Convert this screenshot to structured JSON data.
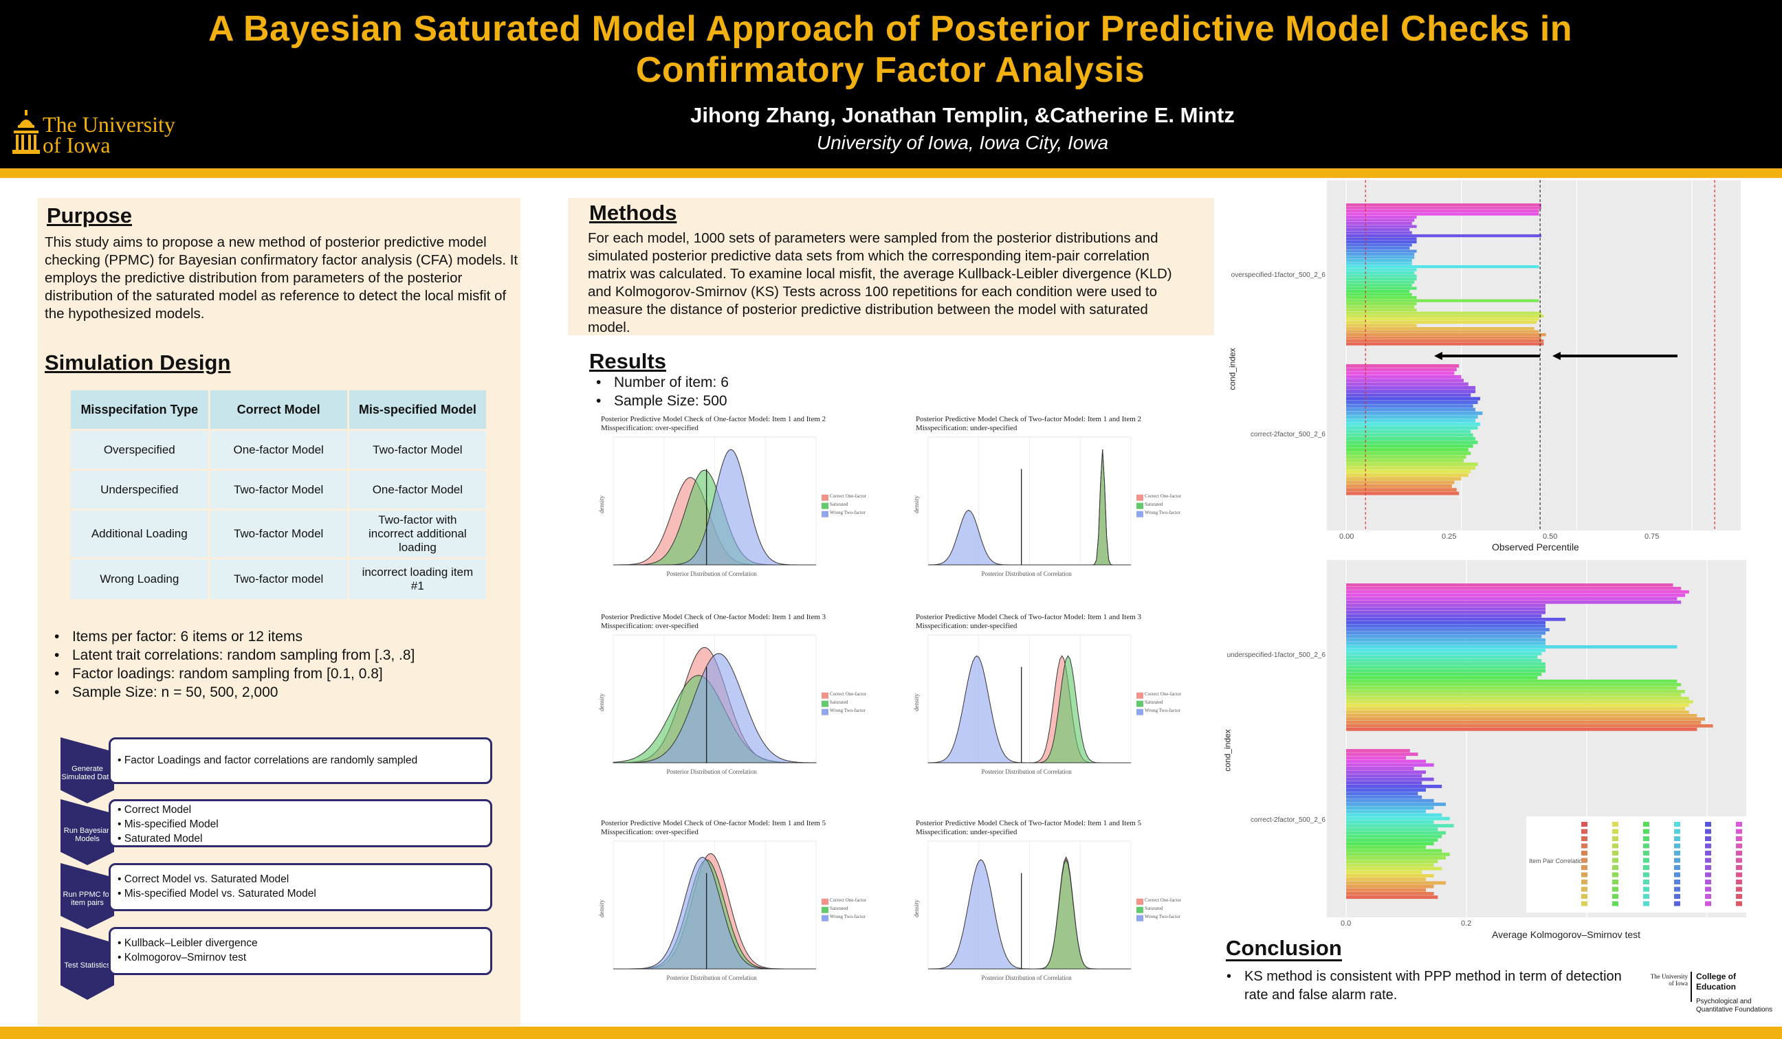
{
  "header": {
    "title_line1": "A Bayesian Saturated Model Approach of Posterior Predictive Model Checks in",
    "title_line2": "Confirmatory Factor Analysis",
    "authors": "Jihong Zhang, Jonathan Templin, &Catherine E. Mintz",
    "affiliation": "University of Iowa, Iowa City, Iowa",
    "logo_line1": "The University",
    "logo_line2": "of Iowa"
  },
  "purpose": {
    "title": "Purpose",
    "text": "This study aims to propose a new method of posterior predictive model checking (PPMC) for Bayesian confirmatory factor analysis (CFA) models. It employs the predictive distribution from parameters of the posterior distribution of the saturated model as reference to detect the local misfit of the hypothesized models."
  },
  "simulation": {
    "title": "Simulation Design",
    "headers": [
      "Misspecifation Type",
      "Correct Model",
      "Mis-specified Model"
    ],
    "rows": [
      [
        "Overspecified",
        "One-factor Model",
        "Two-factor Model"
      ],
      [
        "Underspecified",
        "Two-factor Model",
        "One-factor Model"
      ],
      [
        "Additional Loading",
        "Two-factor Model",
        "Two-factor with incorrect additional loading"
      ],
      [
        "Wrong Loading",
        "Two-factor model",
        "incorrect loading item #1"
      ]
    ],
    "bullets": [
      "Items per factor: 6 items or 12 items",
      "Latent trait correlations:  random sampling from [.3, .8]",
      "Factor loadings: random sampling from [0.1, 0.8]",
      "Sample Size: n = 50, 500, 2,000"
    ]
  },
  "steps": [
    {
      "label": "Generate Simulated Data",
      "items": [
        "Factor Loadings and factor correlations are randomly sampled"
      ]
    },
    {
      "label": "Run Bayesian Models",
      "items": [
        "Correct Model",
        "Mis-specified Model",
        "Saturated Model"
      ]
    },
    {
      "label": "Run PPMC for item pairs",
      "items": [
        "Correct Model vs. Saturated Model",
        "Mis-specified Model vs. Saturated Model"
      ]
    },
    {
      "label": "Test Statistics",
      "items": [
        "Kullback–Leibler divergence",
        "Kolmogorov–Smirnov test"
      ]
    }
  ],
  "methods": {
    "title": "Methods",
    "text": "For each model, 1000 sets of parameters were sampled from the posterior distributions and simulated posterior predictive data sets from which the corresponding item-pair correlation matrix was calculated. To examine local misfit, the average Kullback-Leibler divergence (KLD) and Kolmogorov-Smirnov (KS) Tests across 100 repetitions for each condition were used to measure the distance of posterior predictive distribution between the model with saturated model."
  },
  "results": {
    "title": "Results",
    "bullets": [
      "Number of item: 6",
      "Sample Size: 500"
    ]
  },
  "density_plots": [
    {
      "title": "Posterior Predictive Model Check of One-factor Model: Item 1 and Item 2",
      "subtitle": "Misspecification: over-specified"
    },
    {
      "title": "Posterior Predictive Model Check of Two-factor Model: Item 1 and Item 2",
      "subtitle": "Misspecification: under-specified"
    },
    {
      "title": "Posterior Predictive Model Check of One-factor Model: Item 1 and Item 3",
      "subtitle": "Misspecification: over-specified"
    },
    {
      "title": "Posterior Predictive Model Check of Two-factor Model: Item 1 and Item 3",
      "subtitle": "Misspecification: under-specified"
    },
    {
      "title": "Posterior Predictive Model Check of One-factor Model: Item 1 and Item 5",
      "subtitle": "Misspecification: over-specified"
    },
    {
      "title": "Posterior Predictive Model Check of Two-factor Model: Item 1 and Item 5",
      "subtitle": "Misspecification: under-specified"
    }
  ],
  "density_common": {
    "xlabel": "Posterior Distribution of Correlation",
    "ylabel": "density",
    "legend": [
      "Correct One-factor",
      "Saturated",
      "Wrong Two-factor"
    ],
    "legend_colors": [
      "#f4918b",
      "#63c96d",
      "#8fa6ee"
    ]
  },
  "chart_data": [
    {
      "type": "bar",
      "title": "",
      "xlabel": "Observed Percentile",
      "ylabel": "cond_index",
      "categories": [
        "overspecified-1factor_500_2_6",
        "correct-2factor_500_2_6"
      ],
      "xticks": [
        "0.00",
        "0.25",
        "0.50",
        "0.75"
      ],
      "xlim": [
        0,
        1
      ],
      "ref_lines": [
        0.05,
        0.5,
        0.95
      ]
    },
    {
      "type": "bar",
      "title": "",
      "xlabel": "Average Kolmogorov–Smirnov test",
      "ylabel": "cond_index",
      "categories": [
        "underspecified-1factor_500_2_6",
        "correct-2factor_500_2_6"
      ],
      "xticks": [
        "0.0",
        "0.2"
      ],
      "legend_title": "Item Pair Correlation"
    }
  ],
  "conclusion": {
    "title": "Conclusion",
    "bullet": "KS method is consistent with PPP method in term of detection rate and false alarm rate."
  },
  "college_logo": {
    "line1": "College of",
    "line2": "Education",
    "line3": "Psychological and",
    "line4": "Quantitative Foundations",
    "mini": "The University of Iowa"
  }
}
